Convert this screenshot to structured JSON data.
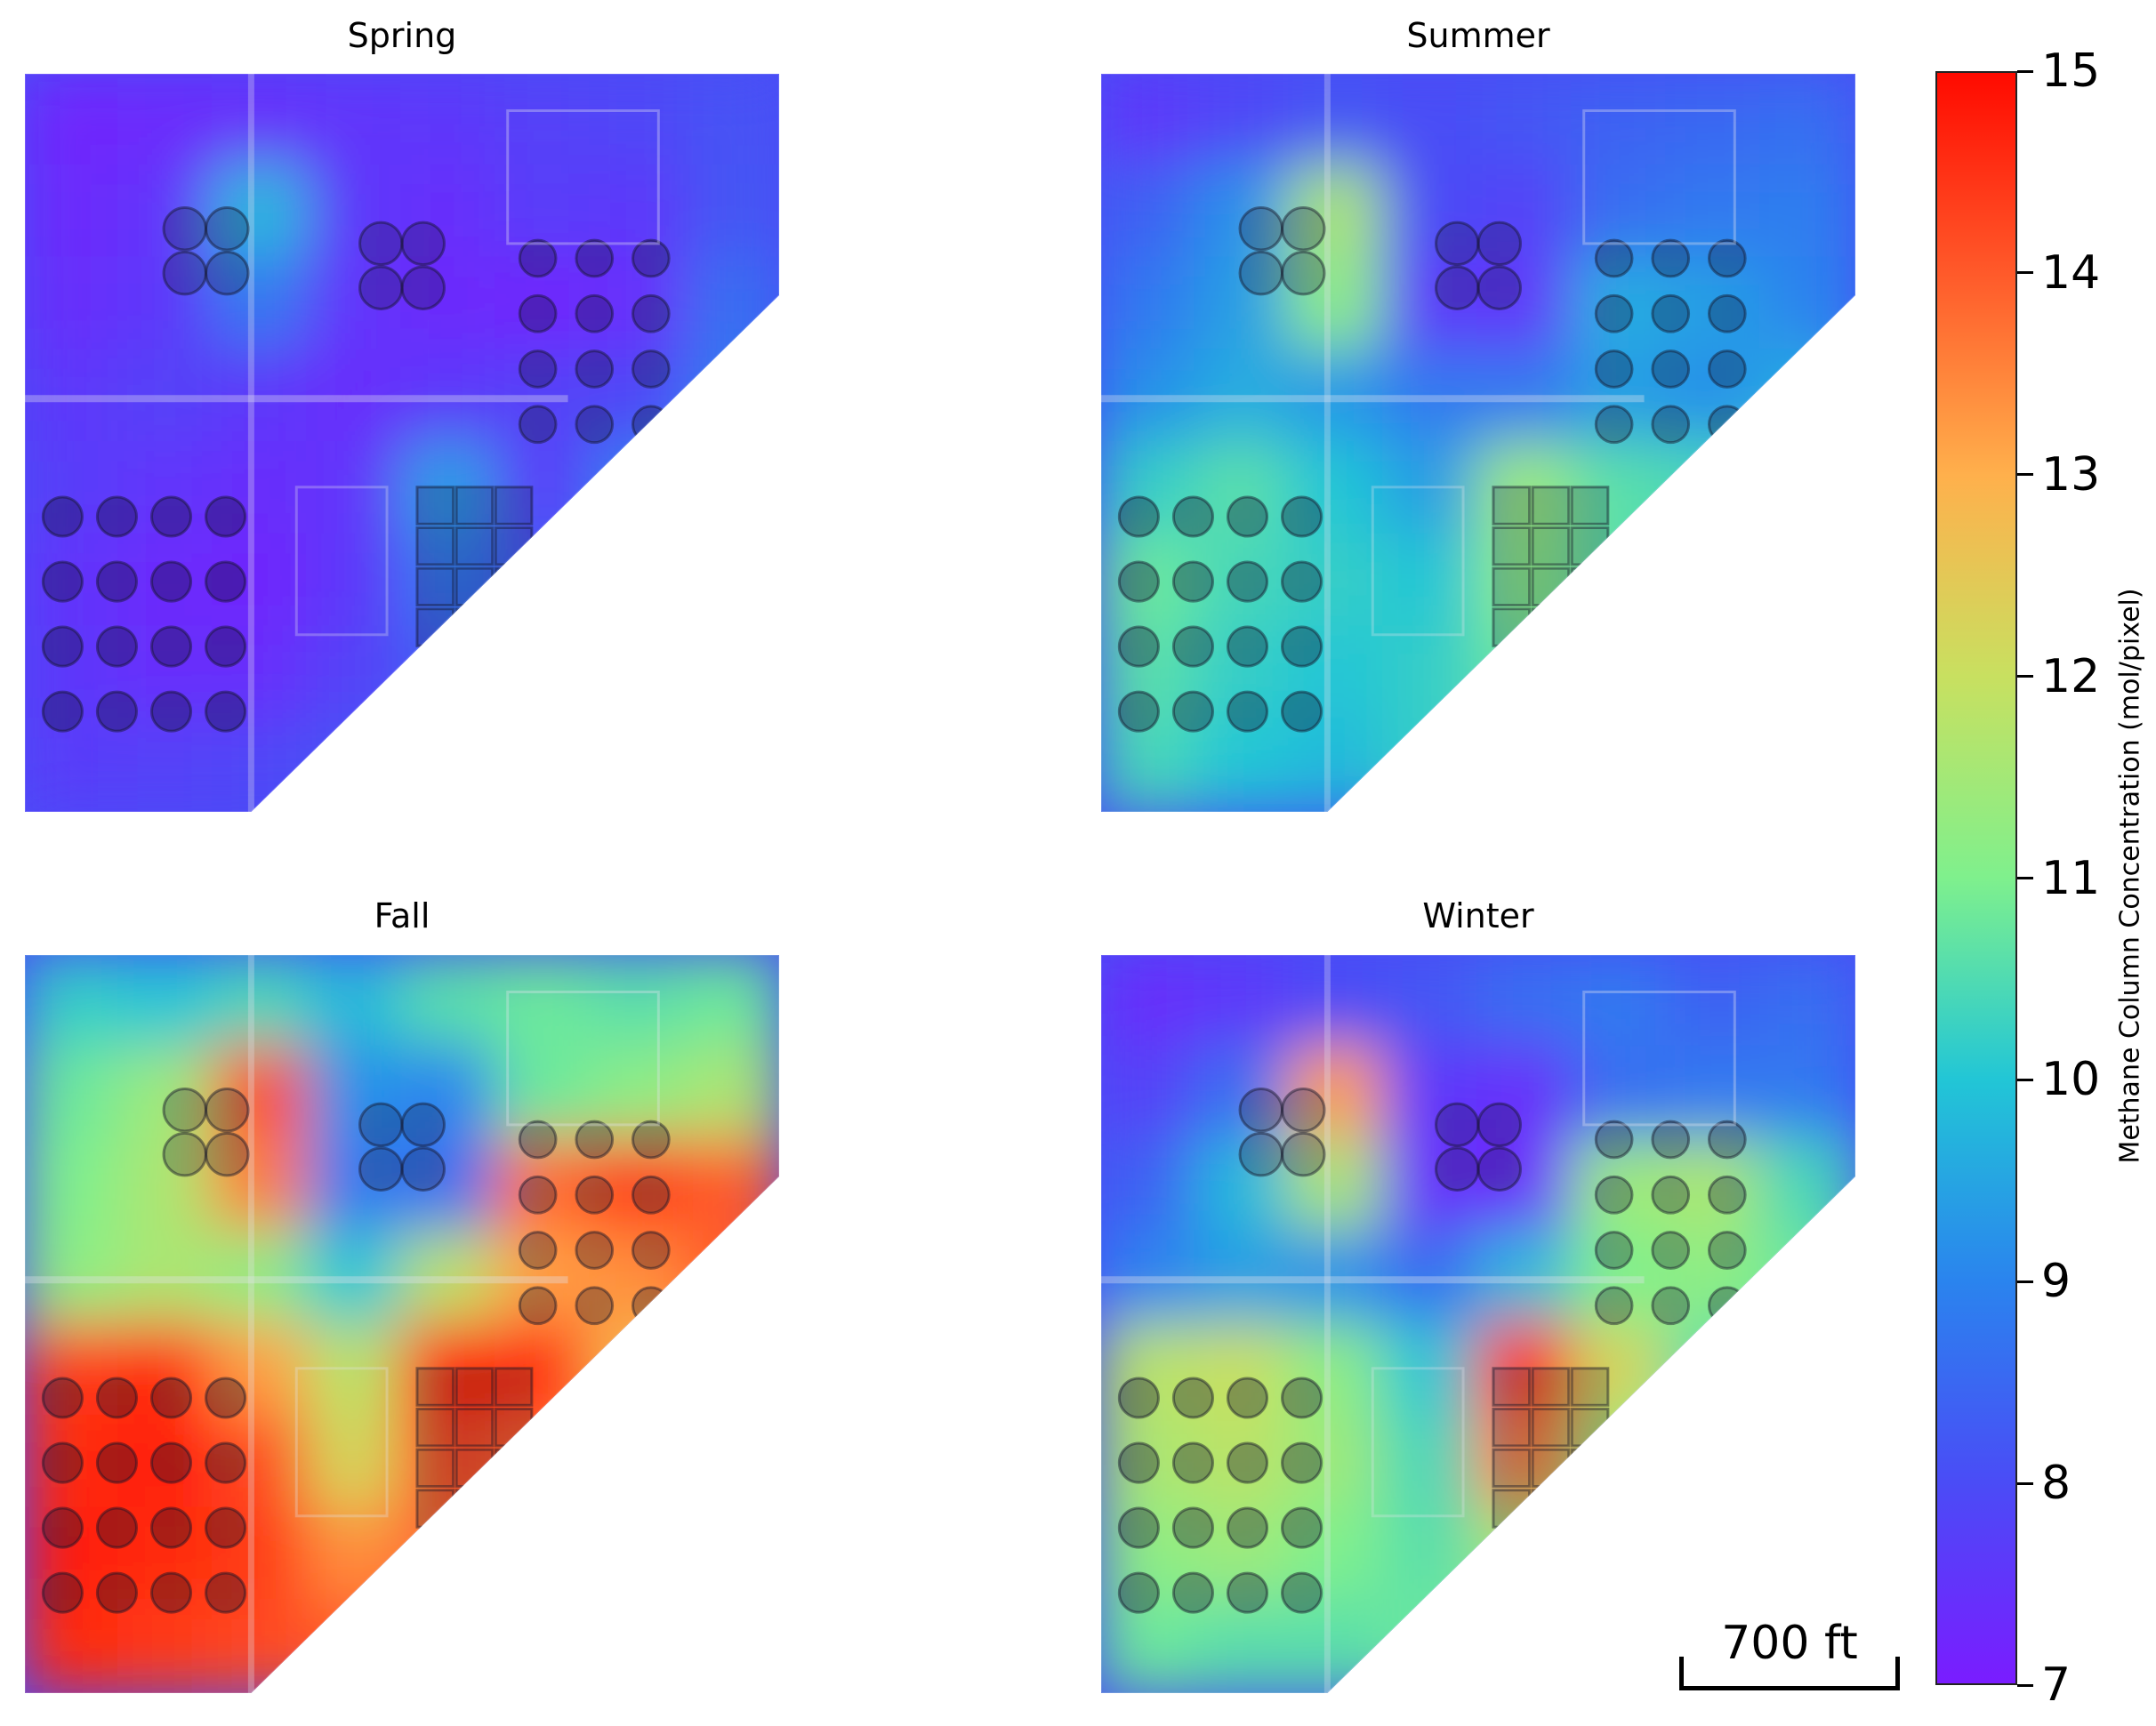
{
  "chart_data": {
    "type": "heatmap",
    "panels": [
      {
        "title": "Spring",
        "level_map": [
          [
            7.2,
            7.3,
            7.4,
            7.5,
            7.6,
            7.8,
            7.9,
            8.1
          ],
          [
            7.3,
            7.5,
            9.8,
            7.6,
            7.4,
            7.7,
            7.6,
            8.2
          ],
          [
            7.4,
            7.6,
            8.8,
            7.5,
            7.3,
            7.2,
            7.4,
            8.6
          ],
          [
            7.6,
            7.8,
            7.6,
            7.4,
            7.6,
            7.8,
            7.9,
            8.8
          ],
          [
            7.7,
            7.5,
            7.4,
            7.5,
            9.4,
            7.7,
            8.9,
            9.3
          ],
          [
            7.5,
            7.3,
            7.2,
            7.6,
            8.8,
            8.2,
            8.6,
            null
          ],
          [
            7.6,
            7.4,
            7.4,
            7.8,
            8.3,
            8.5,
            null,
            null
          ],
          [
            7.7,
            7.8,
            7.9,
            8.1,
            8.4,
            null,
            null,
            null
          ]
        ]
      },
      {
        "title": "Summer",
        "level_map": [
          [
            7.6,
            7.9,
            8.2,
            8.0,
            8.2,
            8.4,
            8.5,
            8.6
          ],
          [
            8.4,
            9.2,
            11.6,
            8.0,
            7.8,
            8.6,
            8.8,
            8.9
          ],
          [
            8.8,
            9.4,
            11.2,
            7.6,
            7.5,
            9.6,
            9.4,
            9.0
          ],
          [
            9.2,
            9.6,
            9.3,
            8.8,
            8.8,
            9.4,
            9.2,
            9.6
          ],
          [
            10.2,
            10.6,
            10.0,
            9.4,
            11.4,
            10.6,
            10.4,
            10.8
          ],
          [
            10.8,
            10.4,
            10.2,
            10.0,
            11.2,
            10.6,
            10.6,
            null
          ],
          [
            10.6,
            10.2,
            10.0,
            10.2,
            10.8,
            10.8,
            null,
            null
          ],
          [
            10.4,
            10.0,
            9.8,
            10.2,
            10.6,
            null,
            null,
            null
          ]
        ]
      },
      {
        "title": "Fall",
        "level_map": [
          [
            10.2,
            10.0,
            10.4,
            9.8,
            10.6,
            10.8,
            10.6,
            10.8
          ],
          [
            10.8,
            11.4,
            14.2,
            9.2,
            9.0,
            10.8,
            11.2,
            11.6
          ],
          [
            11.0,
            11.6,
            13.6,
            8.8,
            8.6,
            13.8,
            14.4,
            14.0
          ],
          [
            11.2,
            11.6,
            11.2,
            10.0,
            11.8,
            13.2,
            13.4,
            14.0
          ],
          [
            14.4,
            14.6,
            13.2,
            11.8,
            15.0,
            14.6,
            12.8,
            13.2
          ],
          [
            14.6,
            14.8,
            14.2,
            12.2,
            14.2,
            13.8,
            13.6,
            null
          ],
          [
            14.8,
            14.6,
            14.4,
            13.4,
            13.8,
            14.2,
            null,
            null
          ],
          [
            14.6,
            14.4,
            14.2,
            14.0,
            14.4,
            null,
            null,
            null
          ]
        ]
      },
      {
        "title": "Winter",
        "level_map": [
          [
            7.4,
            7.6,
            8.0,
            8.2,
            8.6,
            8.8,
            8.4,
            8.6
          ],
          [
            7.8,
            8.6,
            13.2,
            7.6,
            7.4,
            8.6,
            8.8,
            8.8
          ],
          [
            8.4,
            9.8,
            11.6,
            7.4,
            7.3,
            11.4,
            11.6,
            10.4
          ],
          [
            9.0,
            9.4,
            9.2,
            8.6,
            9.8,
            11.0,
            11.2,
            10.8
          ],
          [
            11.8,
            12.0,
            11.2,
            10.0,
            14.8,
            12.2,
            10.6,
            11.0
          ],
          [
            11.6,
            11.8,
            11.4,
            10.4,
            13.6,
            11.2,
            11.0,
            null
          ],
          [
            11.2,
            11.4,
            11.0,
            10.6,
            11.6,
            11.4,
            null,
            null
          ],
          [
            10.8,
            10.6,
            10.6,
            10.8,
            11.0,
            null,
            null,
            null
          ]
        ]
      }
    ],
    "colorbar": {
      "label": "Methane Column Concentration (mol/pixel)",
      "min": 7,
      "max": 15,
      "ticks": [
        "7",
        "8",
        "9",
        "10",
        "11",
        "12",
        "13",
        "14",
        "15"
      ],
      "colormap": "rainbow"
    },
    "scale_bar": {
      "label": "700 ft"
    }
  }
}
